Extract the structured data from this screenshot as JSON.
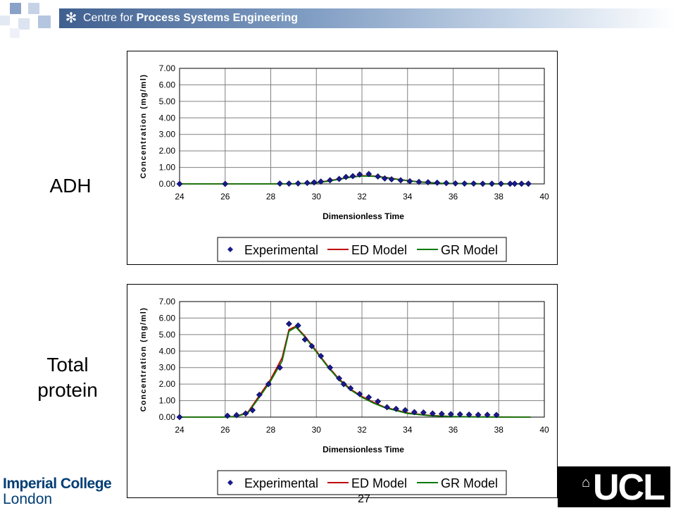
{
  "header": {
    "title_prefix": "Centre for ",
    "title_bold": "Process Systems Engineering",
    "logo_icon": "snowflake-icon"
  },
  "labels": {
    "chart1": "ADH",
    "chart2_line1": "Total",
    "chart2_line2": "protein"
  },
  "footer": {
    "imperial_line1": "Imperial College",
    "imperial_line2": "London",
    "ucl": "UCL",
    "page_number": "27"
  },
  "colors": {
    "experimental": "#1a1a8c",
    "ed_model": "#c00000",
    "gr_model": "#0a7a0a",
    "imperial_blue": "#003e74"
  },
  "chart_data": [
    {
      "type": "line",
      "xlabel": "Dimensionless Time",
      "ylabel": "Concentration (mg/ml)",
      "xlim": [
        24,
        40
      ],
      "ylim": [
        0,
        7
      ],
      "xticks": [
        "24",
        "26",
        "28",
        "30",
        "32",
        "34",
        "36",
        "38",
        "40"
      ],
      "yticks": [
        "0.00",
        "1.00",
        "2.00",
        "3.00",
        "4.00",
        "5.00",
        "6.00",
        "7.00"
      ],
      "grid": true,
      "legend_position": "bottom",
      "legend": [
        "Experimental",
        "ED Model",
        "GR Model"
      ],
      "series": [
        {
          "name": "Experimental",
          "style": "markers",
          "x": [
            24,
            26,
            28.4,
            28.8,
            29.2,
            29.6,
            29.9,
            30.2,
            30.6,
            31.0,
            31.3,
            31.6,
            31.9,
            32.3,
            32.7,
            33.0,
            33.3,
            33.7,
            34.1,
            34.5,
            34.9,
            35.3,
            35.7,
            36.1,
            36.5,
            36.9,
            37.3,
            37.7,
            38.1,
            38.5,
            38.7,
            39.0,
            39.3
          ],
          "y": [
            0,
            0,
            0.02,
            0.02,
            0.03,
            0.06,
            0.09,
            0.14,
            0.22,
            0.3,
            0.42,
            0.47,
            0.57,
            0.6,
            0.45,
            0.33,
            0.28,
            0.22,
            0.16,
            0.12,
            0.1,
            0.07,
            0.05,
            0.03,
            0.02,
            0.02,
            0.01,
            0.01,
            0.01,
            0.01,
            0.01,
            0.01,
            0.01
          ]
        },
        {
          "name": "ED Model",
          "style": "line",
          "x": [
            24,
            28,
            29,
            29.5,
            30,
            30.5,
            31,
            31.5,
            32,
            32.5,
            33,
            33.5,
            34,
            34.5,
            35,
            35.5,
            36,
            37,
            38,
            39.4
          ],
          "y": [
            0,
            0,
            0.01,
            0.03,
            0.08,
            0.18,
            0.3,
            0.42,
            0.5,
            0.48,
            0.4,
            0.3,
            0.2,
            0.13,
            0.08,
            0.04,
            0.02,
            0.01,
            0,
            0
          ]
        },
        {
          "name": "GR Model",
          "style": "line",
          "x": [
            24,
            28,
            29,
            29.5,
            30,
            30.5,
            31,
            31.5,
            32,
            32.5,
            33,
            33.5,
            34,
            34.5,
            35,
            35.5,
            36,
            37,
            38,
            39.4
          ],
          "y": [
            0,
            0,
            0.01,
            0.02,
            0.07,
            0.16,
            0.28,
            0.4,
            0.48,
            0.46,
            0.38,
            0.28,
            0.19,
            0.12,
            0.07,
            0.04,
            0.02,
            0.01,
            0,
            0
          ]
        }
      ]
    },
    {
      "type": "line",
      "xlabel": "Dimensionless Time",
      "ylabel": "Concentration (mg/ml)",
      "xlim": [
        24,
        40
      ],
      "ylim": [
        0,
        7
      ],
      "xticks": [
        "24",
        "26",
        "28",
        "30",
        "32",
        "34",
        "36",
        "38",
        "40"
      ],
      "yticks": [
        "0.00",
        "1.00",
        "2.00",
        "3.00",
        "4.00",
        "5.00",
        "6.00",
        "7.00"
      ],
      "grid": true,
      "legend_position": "bottom",
      "legend": [
        "Experimental",
        "ED Model",
        "GR Model"
      ],
      "series": [
        {
          "name": "Experimental",
          "style": "markers",
          "x": [
            24,
            26.1,
            26.5,
            26.9,
            27.2,
            27.5,
            27.9,
            28.4,
            28.8,
            29.2,
            29.5,
            29.8,
            30.2,
            30.6,
            31.0,
            31.2,
            31.5,
            31.9,
            32.3,
            32.7,
            33.1,
            33.5,
            33.9,
            34.3,
            34.7,
            35.1,
            35.5,
            35.9,
            36.3,
            36.7,
            37.1,
            37.5,
            37.9
          ],
          "y": [
            0,
            0.08,
            0.12,
            0.22,
            0.42,
            1.35,
            2.0,
            3.0,
            5.65,
            5.55,
            4.7,
            4.3,
            3.7,
            3.0,
            2.35,
            2.0,
            1.75,
            1.4,
            1.2,
            0.95,
            0.6,
            0.5,
            0.42,
            0.3,
            0.28,
            0.22,
            0.2,
            0.18,
            0.17,
            0.15,
            0.14,
            0.14,
            0.13
          ]
        },
        {
          "name": "ED Model",
          "style": "line",
          "x": [
            24,
            26,
            26.5,
            27,
            27.5,
            28,
            28.5,
            28.8,
            29.1,
            29.5,
            30,
            30.5,
            31,
            31.5,
            32,
            32.5,
            33,
            34,
            35,
            36,
            37,
            38,
            39.4
          ],
          "y": [
            0,
            0,
            0.05,
            0.3,
            1.3,
            2.3,
            3.6,
            5.3,
            5.5,
            4.9,
            4.0,
            3.1,
            2.3,
            1.7,
            1.25,
            0.9,
            0.6,
            0.25,
            0.1,
            0.04,
            0.02,
            0.01,
            0
          ]
        },
        {
          "name": "GR Model",
          "style": "line",
          "x": [
            24,
            26,
            26.5,
            27,
            27.5,
            28,
            28.5,
            28.8,
            29.1,
            29.5,
            30,
            30.5,
            31,
            31.5,
            32,
            32.5,
            33,
            34,
            35,
            36,
            37,
            38,
            39.4
          ],
          "y": [
            0,
            0,
            0.04,
            0.25,
            1.2,
            2.2,
            3.4,
            5.2,
            5.45,
            4.85,
            3.95,
            3.05,
            2.25,
            1.65,
            1.2,
            0.85,
            0.57,
            0.22,
            0.08,
            0.03,
            0.01,
            0,
            0
          ]
        }
      ]
    }
  ]
}
